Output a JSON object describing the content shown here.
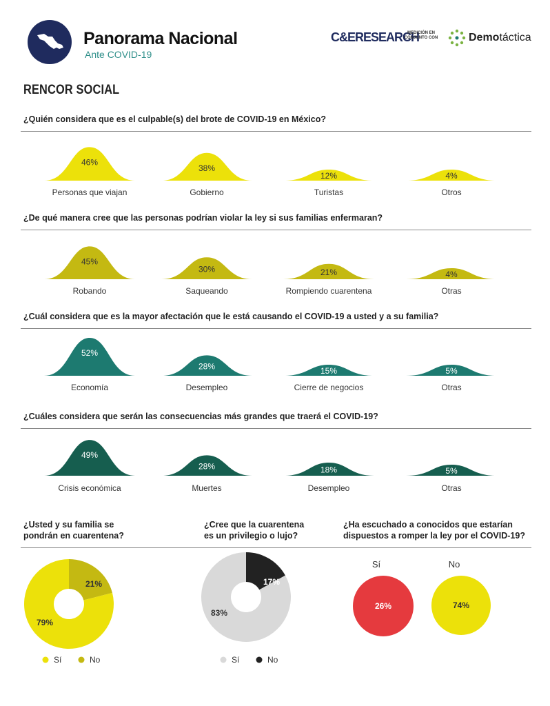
{
  "header": {
    "title": "Panorama Nacional",
    "subtitle": "Ante COVID-19",
    "brand_left": "C&ERESEARCH",
    "brand_middle": "MEDICIÓN EN CONJUNTO CON",
    "brand_right_bold": "Demo",
    "brand_right_light": "táctica"
  },
  "section_title": "RENCOR SOCIAL",
  "colors": {
    "yellow": "#ece10a",
    "olive": "#c4b912",
    "teal": "#1d7a70",
    "dark_green": "#165e4f",
    "red": "#e53a3e",
    "grey": "#d9d9d9",
    "black": "#222222",
    "navy": "#1f2b5e"
  },
  "chart_data": [
    {
      "type": "bar",
      "title": "¿Quién considera que es el culpable(s) del brote de COVID-19 en México?",
      "categories": [
        "Personas que viajan",
        "Gobierno",
        "Turistas",
        "Otros"
      ],
      "values": [
        46,
        38,
        12,
        4
      ],
      "value_labels": [
        "46%",
        "38%",
        "12%",
        "4%"
      ],
      "color": "#ece10a"
    },
    {
      "type": "bar",
      "title": "¿De qué manera cree que las personas podrían violar la ley si sus familias enfermaran?",
      "categories": [
        "Robando",
        "Saqueando",
        "Rompiendo cuarentena",
        "Otras"
      ],
      "values": [
        45,
        30,
        21,
        4
      ],
      "value_labels": [
        "45%",
        "30%",
        "21%",
        "4%"
      ],
      "color": "#c4b912"
    },
    {
      "type": "bar",
      "title": "¿Cuál considera que es la mayor afectación que le está causando el COVID-19 a usted y a su familia?",
      "categories": [
        "Economía",
        "Desempleo",
        "Cierre de negocios",
        "Otras"
      ],
      "values": [
        52,
        28,
        15,
        5
      ],
      "value_labels": [
        "52%",
        "28%",
        "15%",
        "5%"
      ],
      "color": "#1d7a70"
    },
    {
      "type": "bar",
      "title": "¿Cuáles considera que serán las consecuencias más grandes que traerá el COVID-19?",
      "categories": [
        "Crisis económica",
        "Muertes",
        "Desempleo",
        "Otras"
      ],
      "values": [
        49,
        28,
        18,
        5
      ],
      "value_labels": [
        "49%",
        "28%",
        "18%",
        "5%"
      ],
      "color": "#165e4f"
    },
    {
      "type": "pie",
      "title": "¿Usted y su familia se pondrán en cuarentena?",
      "categories": [
        "Sí",
        "No"
      ],
      "values": [
        79,
        21
      ],
      "value_labels": [
        "79%",
        "21%"
      ],
      "colors": [
        "#ece10a",
        "#c4b912"
      ],
      "legend": [
        "Sí",
        "No"
      ]
    },
    {
      "type": "pie",
      "title": "¿Cree que la cuarentena es un privilegio o lujo?",
      "categories": [
        "Sí",
        "No"
      ],
      "values": [
        83,
        17
      ],
      "value_labels": [
        "83%",
        "17%"
      ],
      "colors": [
        "#d9d9d9",
        "#222222"
      ],
      "legend": [
        "Sí",
        "No"
      ]
    },
    {
      "type": "bar",
      "title": "¿Ha escuchado a conocidos que estarían dispuestos a romper la ley por el COVID-19?",
      "categories": [
        "Sí",
        "No"
      ],
      "values": [
        26,
        74
      ],
      "value_labels": [
        "26%",
        "74%"
      ],
      "colors": [
        "#e53a3e",
        "#ece10a"
      ]
    }
  ]
}
